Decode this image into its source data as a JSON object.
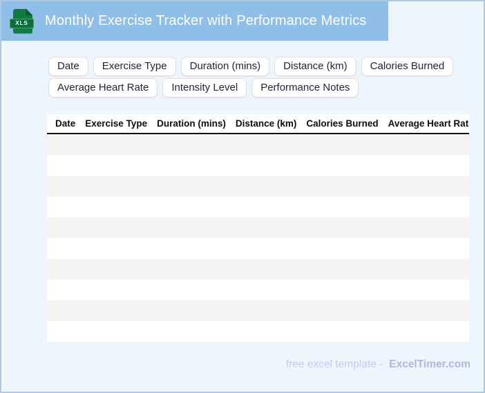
{
  "header": {
    "title": "Monthly Exercise Tracker with Performance Metrics",
    "file_icon": "xls-file-icon",
    "file_icon_label": "XLS"
  },
  "chips": {
    "row1": [
      "Date",
      "Exercise Type",
      "Duration (mins)",
      "Distance (km)",
      "Calories Burned"
    ],
    "row2": [
      "Average Heart Rate",
      "Intensity Level",
      "Performance Notes"
    ]
  },
  "table": {
    "headers": [
      "Date",
      "Exercise Type",
      "Duration (mins)",
      "Distance (km)",
      "Calories Burned",
      "Average Heart Rate"
    ],
    "empty_rows": 10
  },
  "footer": {
    "text": "free excel template -",
    "brand": "ExcelTimer.com"
  },
  "colors": {
    "appbar_blue": "#8fbfe9",
    "page_background": "#eff5fd",
    "page_border": "#aec8e2",
    "icon_green": "#117a43",
    "icon_banner_green": "#0c6e3c",
    "row_stripe": "#f5f5f5",
    "footer_text": "#c2cdec",
    "footer_brand": "#adb9dc"
  }
}
